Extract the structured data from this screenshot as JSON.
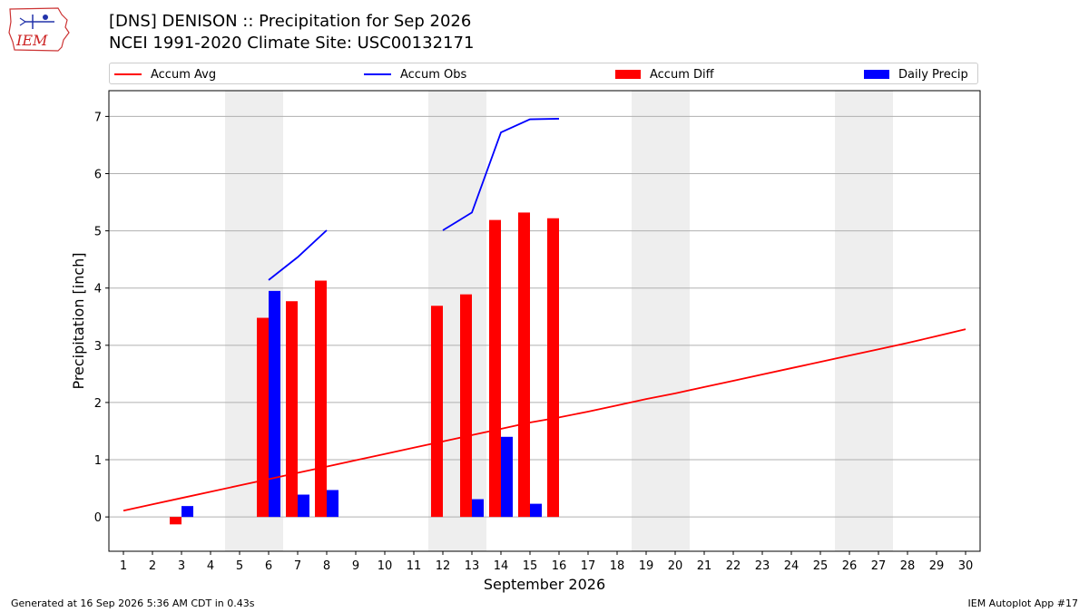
{
  "header": {
    "logo_text": "IEM",
    "title": "[DNS] DENISON :: Precipitation for Sep 2026",
    "subtitle": "NCEI 1991-2020 Climate Site: USC00132171"
  },
  "legend": {
    "items": [
      {
        "label": "Accum Avg",
        "kind": "line",
        "color": "#ff0000"
      },
      {
        "label": "Accum Obs",
        "kind": "line",
        "color": "#0000ff"
      },
      {
        "label": "Accum Diff",
        "kind": "bar",
        "color": "#ff0000"
      },
      {
        "label": "Daily Precip",
        "kind": "bar",
        "color": "#0000ff"
      }
    ]
  },
  "footer": {
    "left": "Generated at 16 Sep 2026 5:36 AM CDT in 0.43s",
    "right": "IEM Autoplot App #17"
  },
  "chart_data": {
    "type": "bar",
    "xlabel": "September 2026",
    "ylabel": "Precipitation [inch]",
    "xlim": [
      0.5,
      30.5
    ],
    "ylim": [
      -0.6,
      7.45
    ],
    "x_ticks": [
      1,
      2,
      3,
      4,
      5,
      6,
      7,
      8,
      9,
      10,
      11,
      12,
      13,
      14,
      15,
      16,
      17,
      18,
      19,
      20,
      21,
      22,
      23,
      24,
      25,
      26,
      27,
      28,
      29,
      30
    ],
    "y_ticks": [
      0,
      1,
      2,
      3,
      4,
      5,
      6,
      7
    ],
    "grid": "y",
    "legend_position": "top",
    "weekend_shading": [
      [
        4.5,
        6.5
      ],
      [
        11.5,
        13.5
      ],
      [
        18.5,
        20.5
      ],
      [
        25.5,
        27.5
      ]
    ],
    "series": [
      {
        "name": "Accum Avg",
        "kind": "line",
        "color": "#ff0000",
        "points": [
          [
            1,
            0.11
          ],
          [
            2,
            0.22
          ],
          [
            3,
            0.33
          ],
          [
            4,
            0.44
          ],
          [
            5,
            0.55
          ],
          [
            6,
            0.66
          ],
          [
            7,
            0.77
          ],
          [
            8,
            0.88
          ],
          [
            9,
            0.99
          ],
          [
            10,
            1.1
          ],
          [
            11,
            1.21
          ],
          [
            12,
            1.32
          ],
          [
            13,
            1.43
          ],
          [
            14,
            1.54
          ],
          [
            15,
            1.65
          ],
          [
            16,
            1.74
          ],
          [
            17,
            1.84
          ],
          [
            18,
            1.95
          ],
          [
            19,
            2.06
          ],
          [
            20,
            2.16
          ],
          [
            21,
            2.27
          ],
          [
            22,
            2.38
          ],
          [
            23,
            2.49
          ],
          [
            24,
            2.6
          ],
          [
            25,
            2.71
          ],
          [
            26,
            2.82
          ],
          [
            27,
            2.93
          ],
          [
            28,
            3.04
          ],
          [
            29,
            3.16
          ],
          [
            30,
            3.28
          ]
        ]
      },
      {
        "name": "Accum Obs",
        "kind": "line",
        "color": "#0000ff",
        "segments": [
          [
            [
              6,
              4.14
            ],
            [
              7,
              4.54
            ],
            [
              8,
              5.01
            ]
          ],
          [
            [
              12,
              5.01
            ],
            [
              13,
              5.32
            ],
            [
              14,
              6.72
            ],
            [
              15,
              6.95
            ],
            [
              16,
              6.96
            ]
          ]
        ]
      },
      {
        "name": "Accum Diff",
        "kind": "bar",
        "color": "#ff0000",
        "x": [
          3,
          6,
          7,
          8,
          12,
          13,
          14,
          15,
          16
        ],
        "values": [
          -0.13,
          3.48,
          3.77,
          4.13,
          3.69,
          3.89,
          5.19,
          5.32,
          5.22
        ]
      },
      {
        "name": "Daily Precip",
        "kind": "bar",
        "color": "#0000ff",
        "x": [
          3,
          6,
          7,
          8,
          13,
          14,
          15
        ],
        "values": [
          0.19,
          3.95,
          0.39,
          0.47,
          0.31,
          1.4,
          0.23
        ]
      }
    ]
  }
}
